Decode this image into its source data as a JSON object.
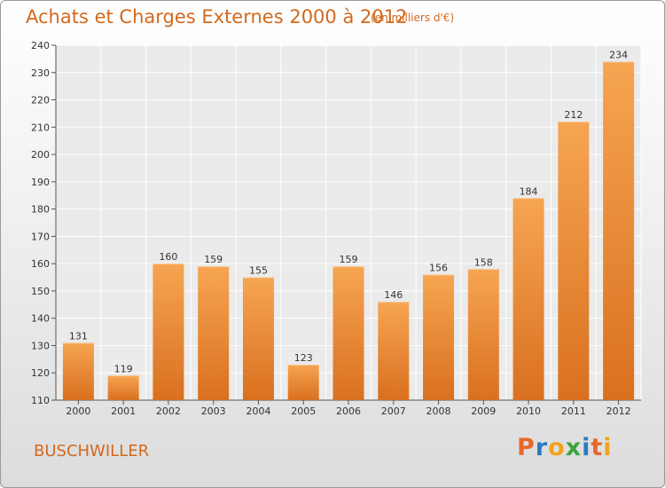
{
  "header": {
    "title": "Achats et Charges Externes 2000 à 2012",
    "unit": "(en milliers d'€)"
  },
  "footer": {
    "place": "BUSCHWILLER",
    "logo_text": "Proxiti"
  },
  "colors": {
    "accent": "#d2691e",
    "bar_top": "#f6a552",
    "bar_bottom": "#d9701f",
    "logo_letters": [
      "#e8672b",
      "#2a7bc2",
      "#f2a21f",
      "#3aa53a",
      "#2a7bc2",
      "#e8672b",
      "#f2a21f"
    ]
  },
  "chart_data": {
    "type": "bar",
    "categories": [
      "2000",
      "2001",
      "2002",
      "2003",
      "2004",
      "2005",
      "2006",
      "2007",
      "2008",
      "2009",
      "2010",
      "2011",
      "2012"
    ],
    "values": [
      131,
      119,
      160,
      159,
      155,
      123,
      159,
      146,
      156,
      158,
      184,
      212,
      234
    ],
    "title": "Achats et Charges Externes 2000 à 2012",
    "subtitle": "(en milliers d'€)",
    "xlabel": "",
    "ylabel": "",
    "ylim": [
      110,
      240
    ],
    "yticks": [
      110,
      120,
      130,
      140,
      150,
      160,
      170,
      180,
      190,
      200,
      210,
      220,
      230,
      240
    ],
    "grid": true,
    "legend": "none"
  }
}
